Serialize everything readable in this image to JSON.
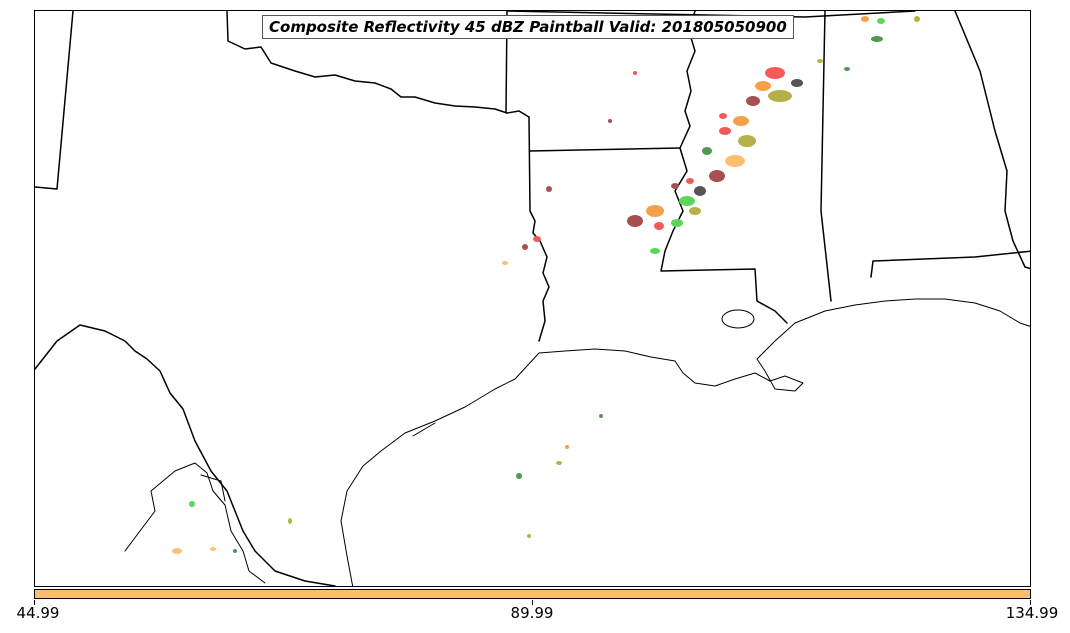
{
  "title": "Composite Reflectivity 45 dBZ Paintball Valid: 201805050900",
  "colorbar": {
    "color": "#fdbf6f",
    "ticks": [
      "44.99",
      "89.99",
      "134.99"
    ]
  },
  "colors": {
    "red": "#f45a5a",
    "orange": "#f6a04a",
    "light_orange": "#fdbf6f",
    "olive": "#b5b04a",
    "green": "#5ad65a",
    "dark_green": "#4e9a4e",
    "maroon": "#a85050",
    "dark_gray": "#555555"
  }
}
